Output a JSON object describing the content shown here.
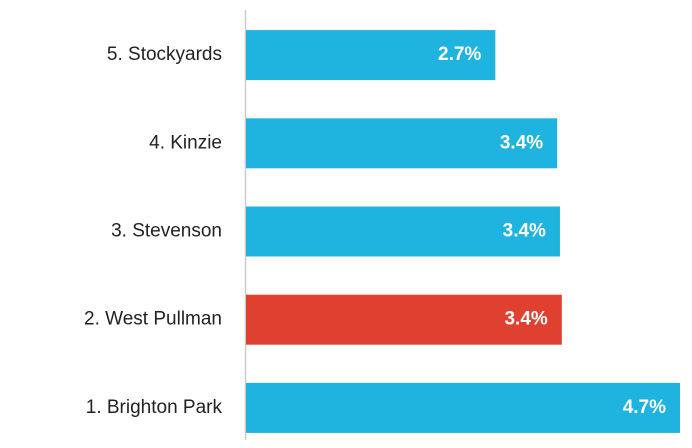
{
  "chart_data": {
    "type": "barh",
    "categories": [
      "5. Stockyards",
      "4. Kinzie",
      "3. Stevenson",
      "2. West Pullman",
      "1. Brighton Park"
    ],
    "values": [
      2.7,
      3.37,
      3.4,
      3.42,
      4.7
    ],
    "value_labels": [
      "2.7%",
      "3.4%",
      "3.4%",
      "3.4%",
      "4.7%"
    ],
    "colors": [
      "#1fb4e0",
      "#1fb4e0",
      "#1fb4e0",
      "#e0402f",
      "#1fb4e0"
    ],
    "xlim": [
      0,
      4.7
    ]
  }
}
